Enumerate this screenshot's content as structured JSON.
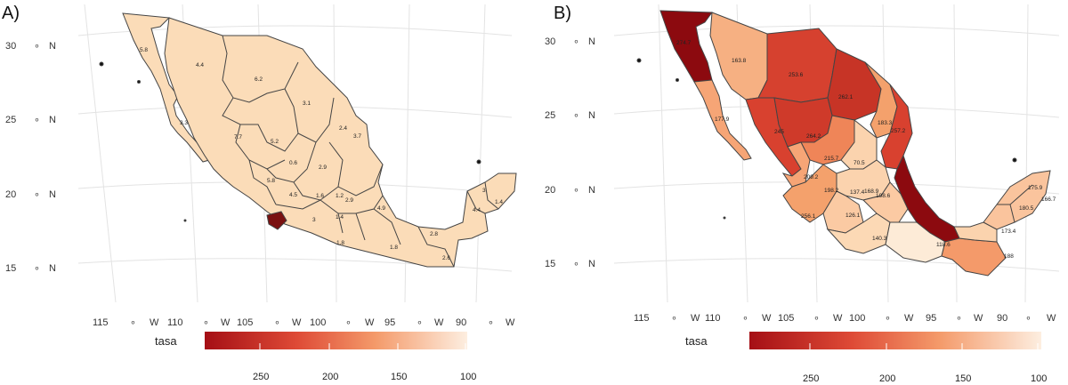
{
  "panels": [
    {
      "label": "A)",
      "lat_labels": [
        "30",
        "25",
        "20",
        "15"
      ],
      "lat_suffix": "N",
      "lon_labels": [
        "115",
        "110",
        "105",
        "100",
        "95",
        "90"
      ],
      "lon_suffix": "W",
      "legend": {
        "title": "tasa",
        "ticks": [
          "250",
          "200",
          "150",
          "100"
        ]
      },
      "state_values": [
        "5.8",
        "4.4",
        "6.2",
        "3.1",
        "3.3",
        "2.4",
        "3.7",
        "7.7",
        "5.2",
        "0.6",
        "2.9",
        "5.8",
        "4.5",
        "1.6",
        "1.2",
        "2.9",
        "3",
        "1.4",
        "4.9",
        "1.8",
        "1.8",
        "2.8",
        "2.6",
        "3",
        "1.4",
        "4.4"
      ]
    },
    {
      "label": "B)",
      "lat_labels": [
        "30",
        "25",
        "20",
        "15"
      ],
      "lat_suffix": "N",
      "lon_labels": [
        "115",
        "110",
        "105",
        "100",
        "95",
        "90"
      ],
      "lon_suffix": "W",
      "legend": {
        "title": "tasa",
        "ticks": [
          "250",
          "200",
          "150",
          "100"
        ]
      },
      "state_values": [
        "163.8",
        "253.6",
        "262.1",
        "177.9",
        "183.3",
        "245",
        "264.2",
        "257.2",
        "215.7",
        "70.5",
        "209.2",
        "198.6",
        "168.9",
        "198.2",
        "137.4",
        "256.1",
        "126.1",
        "140.3",
        "118.6",
        "173.4",
        "188",
        "175.9",
        "166.7",
        "180.5",
        "274.7"
      ]
    }
  ],
  "colors": {
    "low": "#fdeee0",
    "high": "#a50f15",
    "border": "#444444",
    "grid": "#e3e3e3"
  }
}
